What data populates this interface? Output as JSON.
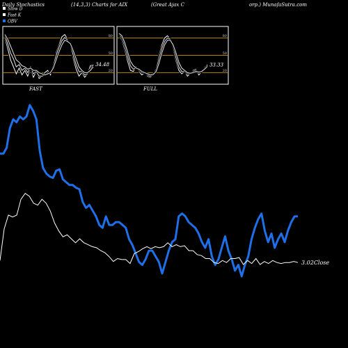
{
  "header": {
    "left": "Daily Stochastics",
    "mid": "(14,3,3) Charts for AIX",
    "right_a": "(Great Ajax C",
    "right_b": "orp.) MunafaSutra.com"
  },
  "legend": [
    {
      "label": "Slow D",
      "color": "#ffffff"
    },
    {
      "label": "Fast K",
      "color": "#ffffff"
    },
    {
      "label": "OBV",
      "color": "#1e6fe8"
    }
  ],
  "colors": {
    "background": "#000000",
    "obv": "#1e6fe8",
    "price": "#ffffff",
    "level_lines": "#b8860b",
    "panel_border": "#ffffff"
  },
  "chart_data": [
    {
      "type": "line",
      "label": "FAST",
      "value_label": "34.48",
      "ylim": [
        0,
        100
      ],
      "y_ticks": [
        80,
        50,
        20
      ],
      "level_lines": [
        80,
        50,
        20
      ],
      "series": [
        {
          "values": [
            80,
            62,
            42,
            30,
            18,
            28,
            16,
            24,
            14,
            28,
            12,
            22,
            10,
            14,
            20,
            24,
            16,
            30,
            55,
            68,
            82,
            86,
            78,
            66,
            44,
            26,
            14,
            20,
            12,
            18,
            32,
            34
          ]
        },
        {
          "values": [
            84,
            70,
            54,
            44,
            30,
            34,
            24,
            28,
            20,
            30,
            18,
            22,
            14,
            14,
            16,
            20,
            20,
            32,
            50,
            64,
            75,
            81,
            76,
            68,
            50,
            34,
            22,
            22,
            16,
            18,
            26,
            34
          ]
        },
        {
          "values": [
            86,
            78,
            66,
            54,
            42,
            38,
            32,
            30,
            26,
            28,
            24,
            24,
            20,
            18,
            16,
            18,
            20,
            28,
            42,
            56,
            68,
            76,
            74,
            70,
            58,
            44,
            30,
            24,
            20,
            20,
            24,
            30
          ]
        }
      ]
    },
    {
      "type": "line",
      "label": "FULL",
      "value_label": "33.33",
      "ylim": [
        0,
        100
      ],
      "y_ticks": [
        80,
        50,
        20
      ],
      "level_lines": [
        80,
        50,
        20
      ],
      "series": [
        {
          "values": [
            86,
            76,
            60,
            40,
            24,
            22,
            30,
            22,
            16,
            20,
            14,
            12,
            16,
            28,
            50,
            68,
            80,
            84,
            78,
            60,
            40,
            24,
            18,
            22,
            14,
            18,
            24,
            26,
            16,
            22,
            30,
            34
          ]
        },
        {
          "values": [
            88,
            80,
            66,
            48,
            32,
            26,
            28,
            24,
            20,
            20,
            16,
            14,
            16,
            26,
            44,
            62,
            74,
            80,
            78,
            64,
            46,
            30,
            22,
            22,
            18,
            18,
            22,
            24,
            20,
            22,
            28,
            33
          ]
        },
        {
          "values": [
            88,
            84,
            72,
            56,
            40,
            32,
            28,
            26,
            22,
            20,
            18,
            16,
            17,
            22,
            36,
            54,
            68,
            76,
            76,
            68,
            54,
            38,
            28,
            24,
            20,
            19,
            20,
            22,
            21,
            22,
            26,
            31
          ]
        }
      ]
    },
    {
      "type": "line",
      "label": "Price vs OBV",
      "price_label": "3.02Close",
      "series": [
        {
          "name": "OBV",
          "values": [
            46,
            46,
            50,
            64,
            70,
            68,
            72,
            70,
            72,
            80,
            76,
            70,
            48,
            36,
            32,
            30,
            29,
            34,
            35,
            28,
            26,
            24,
            24,
            22,
            21,
            12,
            8,
            10,
            6,
            2,
            -4,
            -6,
            2,
            -4,
            -4,
            -2,
            -2,
            -4,
            -6,
            -14,
            -18,
            -24,
            -30,
            -32,
            -28,
            -22,
            -22,
            -26,
            -30,
            -38,
            -30,
            -22,
            -16,
            -14,
            2,
            4,
            2,
            -2,
            -4,
            -6,
            -10,
            -16,
            -20,
            -14,
            -26,
            -32,
            -28,
            -20,
            -12,
            -22,
            -28,
            -36,
            -32,
            -40,
            -32,
            -26,
            -14,
            -6,
            0,
            4,
            -8,
            -16,
            -10,
            -20,
            -14,
            -10,
            -16,
            -8,
            -2,
            2,
            2
          ]
        },
        {
          "name": "Price",
          "values": [
            3.04,
            3.36,
            3.5,
            3.48,
            3.5,
            3.66,
            3.72,
            3.69,
            3.62,
            3.6,
            3.66,
            3.62,
            3.54,
            3.42,
            3.34,
            3.28,
            3.3,
            3.26,
            3.22,
            3.26,
            3.22,
            3.2,
            3.18,
            3.17,
            3.14,
            3.12,
            3.08,
            3.03,
            3.06,
            3.05,
            3.05,
            3.01,
            3.11,
            3.13,
            3.16,
            3.18,
            3.16,
            3.18,
            3.17,
            3.18,
            3.22,
            3.18,
            3.2,
            3.18,
            3.19,
            3.14,
            3.14,
            3.1,
            3.09,
            3.06,
            3.06,
            3.02,
            3.01,
            3.04,
            3.02,
            3.06,
            3.06,
            3.07,
            3.0,
            3.04,
            3.01,
            3.06,
            3.0,
            3.03,
            3.01,
            3.04,
            3.02,
            3.01,
            3.02,
            3.02,
            3.03,
            3.02
          ]
        }
      ]
    }
  ]
}
